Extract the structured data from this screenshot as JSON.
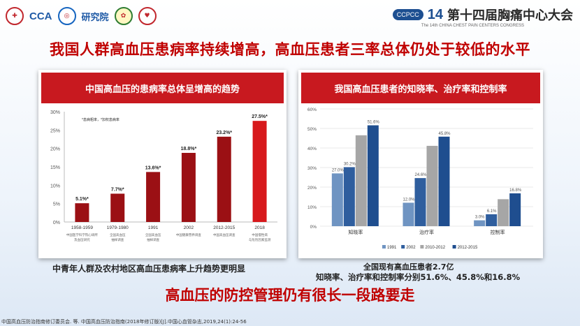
{
  "header": {
    "logo_labels": [
      "CCA",
      "研究院"
    ],
    "conference_badge": "CCPCC",
    "conference_number": "14",
    "conference_title": "第十四届胸痛中心大会",
    "conference_subtitle": "The 14th CHINA CHEST PAIN CENTERS CONGRESS"
  },
  "main_title": "我国人群高血压患病率持续增高，高血压患者三率总体仍处于较低的水平",
  "left_panel": {
    "heading": "中国高血压的患病率总体呈增高的趋势",
    "caption": "中青年人群及农村地区高血压患病率上升趋势更明显"
  },
  "right_panel": {
    "heading": "我国高血压患者的知晓率、治疗率和控制率",
    "caption_line1": "全国现有高血压患者2.7亿",
    "caption_line2": "知晓率、治疗率和控制率分别51.6%、45.8%和16.8%"
  },
  "bottom_title": "高血压的防控管理仍有很长一段路要走",
  "footnote": "中国高血压防治指南修订委员会. 等. 中国高血压防治指南(2018年修订版)[J].中国心血管杂志,2019,24(1):24-56",
  "colors": {
    "accent_red": "#c00000",
    "header_red": "#c8191f",
    "bar_red": "#d7191c",
    "bar_dark_red": "#9b1014"
  },
  "chart_data": [
    {
      "type": "bar",
      "note": "*患病粗率，*加权患病率",
      "categories": [
        "1958-1959",
        "1979-1980",
        "1991",
        "2002",
        "2012-2015",
        "2018"
      ],
      "sub_labels": [
        "中国医学科学院心研所\n及血压研究",
        "全国高血压\n抽样调查",
        "全国高血压\n抽样调查",
        "中国健康营养调查",
        "中国高血压调查",
        "中国慢性病\n与危险因素监测"
      ],
      "values": [
        5.1,
        7.7,
        13.6,
        18.8,
        23.2,
        27.5
      ],
      "value_labels": [
        "5.1%",
        "7.7%",
        "13.6%",
        "18.8%",
        "23.2%",
        "27.5%"
      ],
      "value_marks": [
        "*",
        "*",
        "*",
        "*",
        "*",
        "*"
      ],
      "ylim": [
        0,
        30
      ],
      "yticks": [
        "0%",
        "5%",
        "10%",
        "15%",
        "20%",
        "25%",
        "30%"
      ],
      "grid": false
    },
    {
      "type": "bar",
      "categories": [
        "知晓率",
        "治疗率",
        "控制率"
      ],
      "series": [
        {
          "name": "1991",
          "color": "#6f94c2",
          "values": [
            27.0,
            12.0,
            3.0
          ],
          "labels": [
            "27.0%",
            "12.0%",
            "3.0%"
          ]
        },
        {
          "name": "2002",
          "color": "#2f5e9e",
          "values": [
            30.2,
            24.6,
            6.1
          ],
          "labels": [
            "30.2%",
            "24.6%",
            "6.1%"
          ]
        },
        {
          "name": "2010-2012",
          "color": "#a6a6a6",
          "values": [
            46.5,
            41.1,
            13.8
          ],
          "labels": [
            "",
            "",
            ""
          ]
        },
        {
          "name": "2012-2015",
          "color": "#1f4e8f",
          "values": [
            51.6,
            45.8,
            16.8
          ],
          "labels": [
            "51.6%",
            "45.8%",
            "16.8%"
          ]
        }
      ],
      "ylim": [
        0,
        60
      ],
      "yticks": [
        "0%",
        "10%",
        "20%",
        "30%",
        "40%",
        "50%",
        "60%"
      ],
      "grid": true,
      "legend_position": "bottom"
    }
  ]
}
